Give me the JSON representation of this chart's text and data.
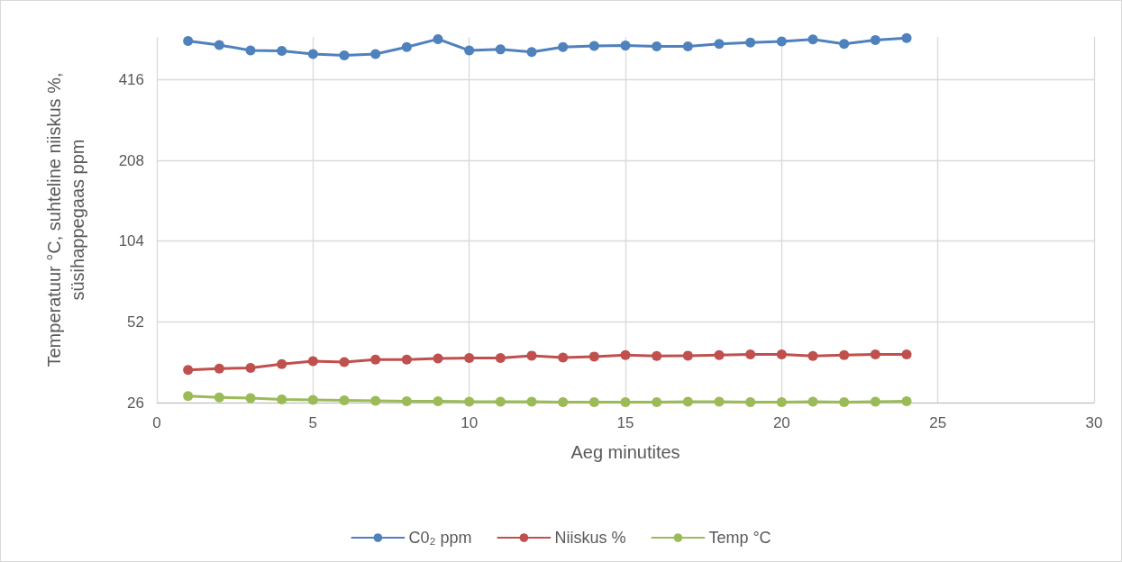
{
  "chart_data": {
    "type": "line",
    "xlabel": "Aeg minutites",
    "ylabel": "Temperatuur °C, suhteline niiskus %,\nsüsihappegaas ppm",
    "x": [
      1,
      2,
      3,
      4,
      5,
      6,
      7,
      8,
      9,
      10,
      11,
      12,
      13,
      14,
      15,
      16,
      17,
      18,
      19,
      20,
      21,
      22,
      23,
      24
    ],
    "series": [
      {
        "name": "C0₂ ppm",
        "color": "#4f81bd",
        "values": [
          579,
          560,
          534,
          532,
          518,
          512,
          518,
          550,
          589,
          534,
          539,
          527,
          550,
          555,
          557,
          553,
          553,
          565,
          572,
          577,
          587,
          565,
          584,
          594
        ]
      },
      {
        "name": "Niiskus %",
        "color": "#c0504d",
        "values": [
          34.4,
          34.8,
          35.0,
          36.2,
          37.1,
          36.8,
          37.6,
          37.6,
          38.0,
          38.1,
          38.1,
          38.9,
          38.3,
          38.6,
          39.1,
          38.8,
          38.9,
          39.1,
          39.3,
          39.3,
          38.8,
          39.1,
          39.3,
          39.3
        ]
      },
      {
        "name": "Temp °C",
        "color": "#9bbb59",
        "values": [
          27.5,
          27.2,
          27.0,
          26.7,
          26.6,
          26.5,
          26.4,
          26.3,
          26.3,
          26.2,
          26.2,
          26.2,
          26.1,
          26.1,
          26.1,
          26.1,
          26.2,
          26.2,
          26.1,
          26.1,
          26.2,
          26.1,
          26.2,
          26.3
        ]
      }
    ],
    "xlim": [
      0,
      30
    ],
    "xticks": [
      0,
      5,
      10,
      15,
      20,
      25,
      30
    ],
    "ylim": [
      26,
      600
    ],
    "yticks": [
      26,
      52,
      104,
      208,
      416
    ],
    "log": "y",
    "grid": true,
    "legend": "bottom",
    "marker": "circle",
    "line_style": "solid"
  }
}
